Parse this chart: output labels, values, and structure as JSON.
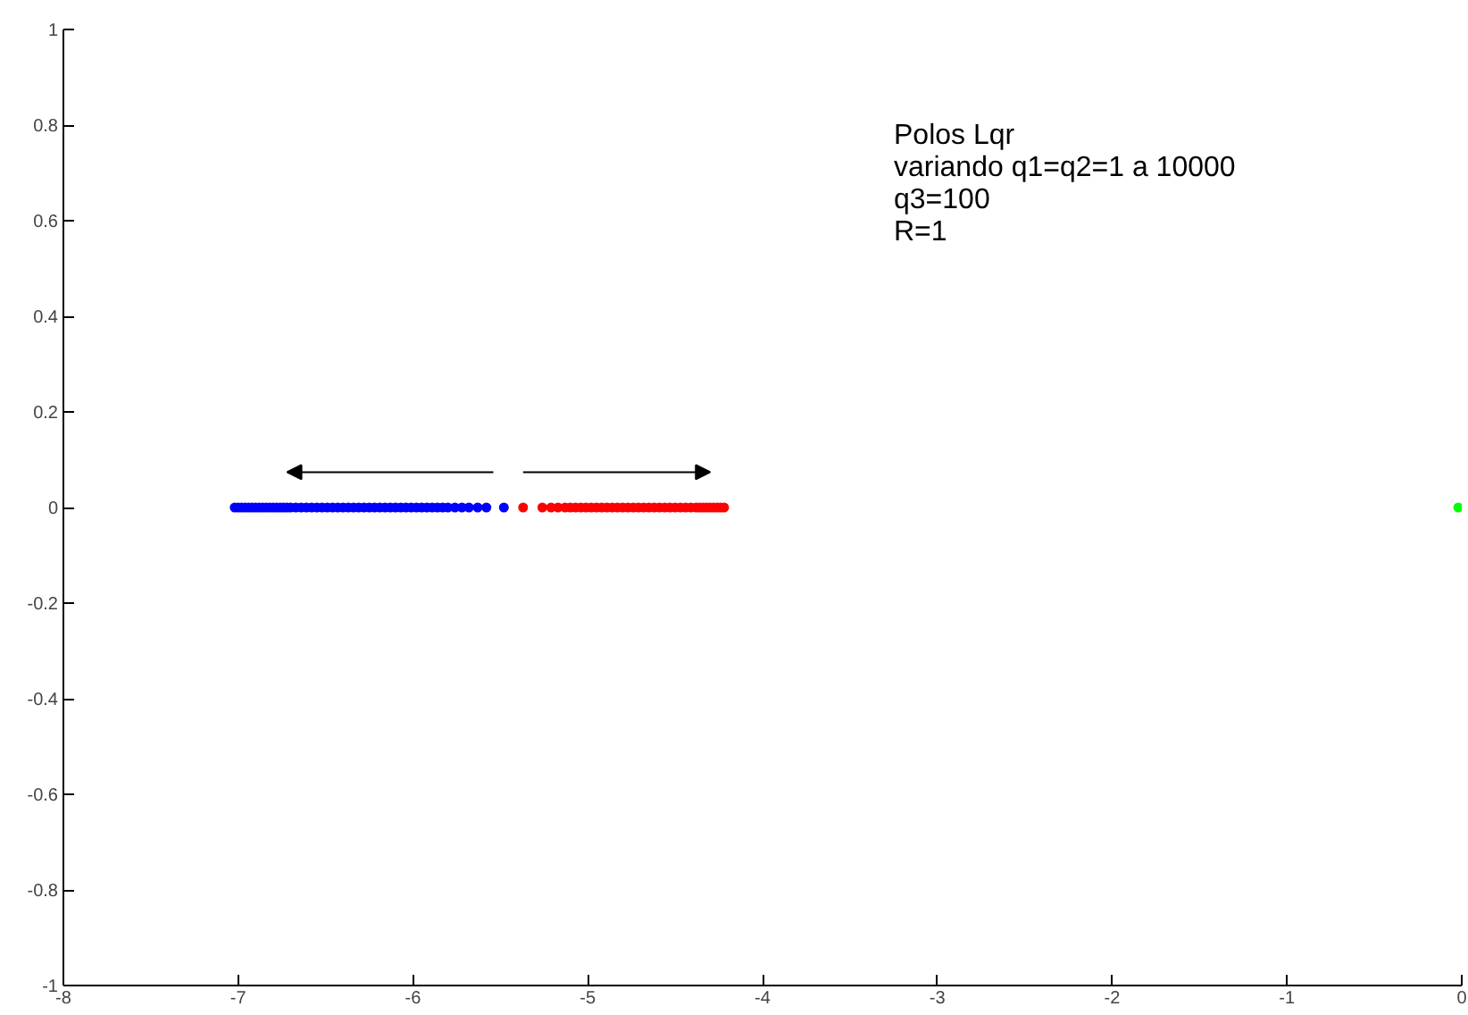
{
  "chart_data": {
    "type": "scatter",
    "series": [
      {
        "color": "#0000ff",
        "x": [
          -7.02,
          -7.0,
          -6.98,
          -6.96,
          -6.94,
          -6.92,
          -6.9,
          -6.88,
          -6.86,
          -6.84,
          -6.82,
          -6.8,
          -6.78,
          -6.76,
          -6.74,
          -6.72,
          -6.7,
          -6.67,
          -6.64,
          -6.61,
          -6.58,
          -6.55,
          -6.52,
          -6.49,
          -6.46,
          -6.43,
          -6.4,
          -6.37,
          -6.34,
          -6.31,
          -6.28,
          -6.25,
          -6.22,
          -6.19,
          -6.16,
          -6.13,
          -6.1,
          -6.07,
          -6.04,
          -6.01,
          -5.98,
          -5.95,
          -5.92,
          -5.89,
          -5.86,
          -5.83,
          -5.8,
          -5.76,
          -5.72,
          -5.68,
          -5.63,
          -5.58,
          -5.48
        ],
        "values": [
          0,
          0,
          0,
          0,
          0,
          0,
          0,
          0,
          0,
          0,
          0,
          0,
          0,
          0,
          0,
          0,
          0,
          0,
          0,
          0,
          0,
          0,
          0,
          0,
          0,
          0,
          0,
          0,
          0,
          0,
          0,
          0,
          0,
          0,
          0,
          0,
          0,
          0,
          0,
          0,
          0,
          0,
          0,
          0,
          0,
          0,
          0,
          0,
          0,
          0,
          0,
          0,
          0
        ]
      },
      {
        "color": "#ff0000",
        "x": [
          -5.37,
          -5.26,
          -5.21,
          -5.17,
          -5.13,
          -5.1,
          -5.07,
          -5.04,
          -5.01,
          -4.98,
          -4.95,
          -4.92,
          -4.89,
          -4.86,
          -4.83,
          -4.8,
          -4.77,
          -4.74,
          -4.71,
          -4.68,
          -4.65,
          -4.62,
          -4.59,
          -4.56,
          -4.53,
          -4.5,
          -4.47,
          -4.44,
          -4.41,
          -4.38,
          -4.36,
          -4.34,
          -4.32,
          -4.3,
          -4.28,
          -4.26,
          -4.24,
          -4.22
        ],
        "values": [
          0,
          0,
          0,
          0,
          0,
          0,
          0,
          0,
          0,
          0,
          0,
          0,
          0,
          0,
          0,
          0,
          0,
          0,
          0,
          0,
          0,
          0,
          0,
          0,
          0,
          0,
          0,
          0,
          0,
          0,
          0,
          0,
          0,
          0,
          0,
          0,
          0,
          0
        ]
      },
      {
        "color": "#00ff00",
        "x": [
          -0.02
        ],
        "values": [
          0
        ]
      }
    ],
    "annotations": [
      "Polos Lqr",
      "variando q1=q2=1 a 10000",
      "q3=100",
      "R=1"
    ],
    "xlim": [
      -8,
      0
    ],
    "xticks": [
      -8,
      -7,
      -6,
      -5,
      -4,
      -3,
      -2,
      -1,
      0
    ],
    "ylim": [
      -1,
      1
    ],
    "yticks": [
      -1,
      -0.8,
      -0.6,
      -0.4,
      -0.2,
      0,
      0.2,
      0.4,
      0.6,
      0.8,
      1
    ],
    "grid": false,
    "marker": "circle"
  }
}
